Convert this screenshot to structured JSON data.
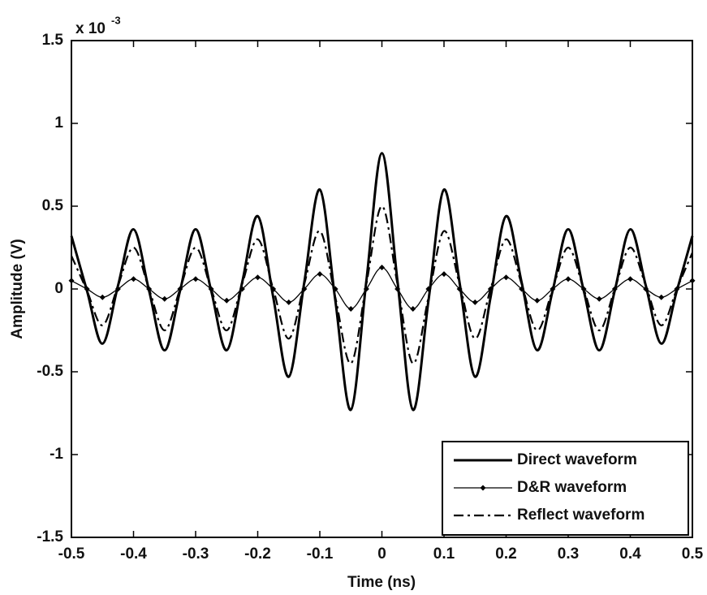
{
  "chart_data": {
    "type": "line",
    "x_label": "Time (ns)",
    "y_label": "Amplitude (V)",
    "y_multiplier": "x 10",
    "y_multiplier_exponent": "-3",
    "x": [
      -0.5,
      -0.475,
      -0.45,
      -0.425,
      -0.4,
      -0.375,
      -0.35,
      -0.325,
      -0.3,
      -0.275,
      -0.25,
      -0.225,
      -0.2,
      -0.175,
      -0.15,
      -0.125,
      -0.1,
      -0.075,
      -0.05,
      -0.025,
      0,
      0.025,
      0.05,
      0.075,
      0.1,
      0.125,
      0.15,
      0.175,
      0.2,
      0.225,
      0.25,
      0.275,
      0.3,
      0.325,
      0.35,
      0.375,
      0.4,
      0.425,
      0.45,
      0.475,
      0.5
    ],
    "series": [
      {
        "name": "Direct waveform",
        "color": "#000000",
        "linestyle": "solid",
        "marker": "none",
        "values": [
          0.32,
          -0.01,
          -0.33,
          0.02,
          0.36,
          -0.01,
          -0.37,
          -0.01,
          0.36,
          -0.01,
          -0.37,
          0.04,
          0.44,
          -0.05,
          -0.53,
          0.04,
          0.6,
          -0.07,
          -0.73,
          0.05,
          0.82,
          0.05,
          -0.73,
          -0.07,
          0.6,
          0.04,
          -0.53,
          -0.05,
          0.44,
          0.04,
          -0.37,
          -0.01,
          0.36,
          -0.01,
          -0.37,
          -0.01,
          0.36,
          0.02,
          -0.33,
          -0.01,
          0.32
        ]
      },
      {
        "name": "D&R waveform",
        "color": "#000000",
        "linestyle": "solid",
        "marker": "diamond",
        "values": [
          0.05,
          0,
          -0.05,
          0,
          0.06,
          0,
          -0.06,
          0,
          0.06,
          0,
          -0.07,
          0,
          0.07,
          0,
          -0.08,
          0,
          0.09,
          0,
          -0.12,
          0,
          0.13,
          0,
          -0.12,
          0,
          0.09,
          0,
          -0.08,
          0,
          0.07,
          0,
          -0.07,
          0,
          0.06,
          0,
          -0.06,
          0,
          0.06,
          0,
          -0.05,
          0,
          0.05
        ]
      },
      {
        "name": "Reflect waveform",
        "color": "#000000",
        "linestyle": "dashdot",
        "marker": "none",
        "values": [
          0.2,
          -0.01,
          -0.22,
          0.02,
          0.25,
          0,
          -0.25,
          0,
          0.25,
          0,
          -0.25,
          0.03,
          0.3,
          0,
          -0.3,
          0.03,
          0.35,
          -0.05,
          -0.45,
          0.03,
          0.5,
          0.03,
          -0.45,
          -0.05,
          0.35,
          0.03,
          -0.3,
          0,
          0.3,
          0.03,
          -0.25,
          0,
          0.25,
          0,
          -0.25,
          0,
          0.25,
          0.02,
          -0.22,
          0,
          0.22
        ]
      }
    ],
    "xlim": [
      -0.5,
      0.5
    ],
    "xticks": [
      -0.5,
      -0.4,
      -0.3,
      -0.2,
      -0.1,
      0,
      0.1,
      0.2,
      0.3,
      0.4,
      0.5
    ],
    "ylim": [
      -1.5,
      1.5
    ],
    "yticks": [
      -1.5,
      -1,
      -0.5,
      0,
      0.5,
      1,
      1.5
    ],
    "grid": false,
    "legend_position": "lower right"
  }
}
